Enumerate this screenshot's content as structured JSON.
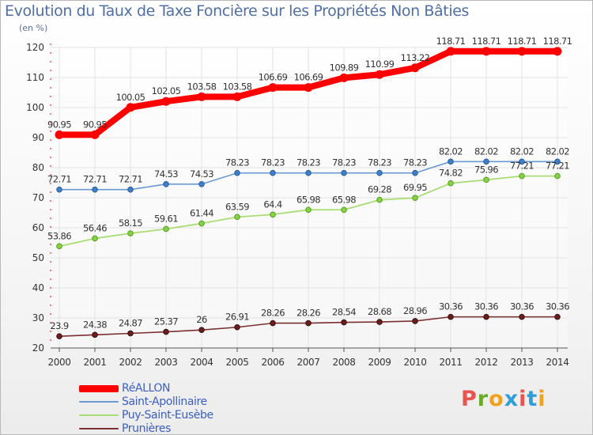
{
  "title": "Evolution du Taux de Taxe Foncière sur les Propriétés Non Bâties",
  "unit_label": "(en %)",
  "logo_text": "Proxiti",
  "logo_colors": [
    "#e8554e",
    "#6aaa2a",
    "#f0a21e",
    "#2e9fd8",
    "#e8554e",
    "#2e9fd8",
    "#f0a21e"
  ],
  "chart_data": {
    "type": "line",
    "x": [
      "2000",
      "2001",
      "2002",
      "2003",
      "2004",
      "2005",
      "2006",
      "2007",
      "2008",
      "2009",
      "2010",
      "2011",
      "2012",
      "2013",
      "2014"
    ],
    "ylim": [
      20,
      120
    ],
    "yticks": [
      20,
      30,
      40,
      50,
      60,
      70,
      80,
      90,
      100,
      110,
      120
    ],
    "grid": true,
    "legend_position": "bottom-left",
    "series": [
      {
        "name": "RéALLON",
        "color": "#ff0000",
        "values": [
          90.95,
          90.95,
          100.05,
          102.05,
          103.58,
          103.58,
          106.69,
          106.69,
          109.89,
          110.99,
          113.22,
          118.71,
          118.71,
          118.71,
          118.71
        ],
        "labels": [
          "90.95",
          "90.95",
          "100.05",
          "102.05",
          "103.58",
          "103.58",
          "106.69",
          "106.69",
          "109.89",
          "110.99",
          "113.22",
          "118.71",
          "118.71",
          "118.71",
          "118.71"
        ]
      },
      {
        "name": "Saint-Apollinaire",
        "color": "#6b9ad3",
        "values": [
          72.71,
          72.71,
          72.71,
          74.53,
          74.53,
          78.23,
          78.23,
          78.23,
          78.23,
          78.23,
          78.23,
          82.02,
          82.02,
          82.02,
          82.02
        ],
        "labels": [
          "72.71",
          "72.71",
          "72.71",
          "74.53",
          "74.53",
          "78.23",
          "78.23",
          "78.23",
          "78.23",
          "78.23",
          "78.23",
          "82.02",
          "82.02",
          "82.02",
          "82.02"
        ]
      },
      {
        "name": "Puy-Saint-Eusèbe",
        "color": "#a9dc74",
        "values": [
          53.86,
          56.46,
          58.15,
          59.61,
          61.44,
          63.59,
          64.4,
          65.98,
          65.98,
          69.28,
          69.95,
          74.82,
          75.96,
          77.21,
          77.21
        ],
        "labels": [
          "53.86",
          "56.46",
          "58.15",
          "59.61",
          "61.44",
          "63.59",
          "64.4",
          "65.98",
          "65.98",
          "69.28",
          "69.95",
          "74.82",
          "75.96",
          "77.21",
          "77.21"
        ]
      },
      {
        "name": "Prunières",
        "color": "#7a3030",
        "values": [
          23.9,
          24.38,
          24.87,
          25.37,
          26,
          26.91,
          28.26,
          28.26,
          28.54,
          28.68,
          28.96,
          30.36,
          30.36,
          30.36,
          30.36
        ],
        "labels": [
          "23.9",
          "24.38",
          "24.87",
          "25.37",
          "26",
          "26.91",
          "28.26",
          "28.26",
          "28.54",
          "28.68",
          "28.96",
          "30.36",
          "30.36",
          "30.36",
          "30.36"
        ]
      }
    ]
  }
}
